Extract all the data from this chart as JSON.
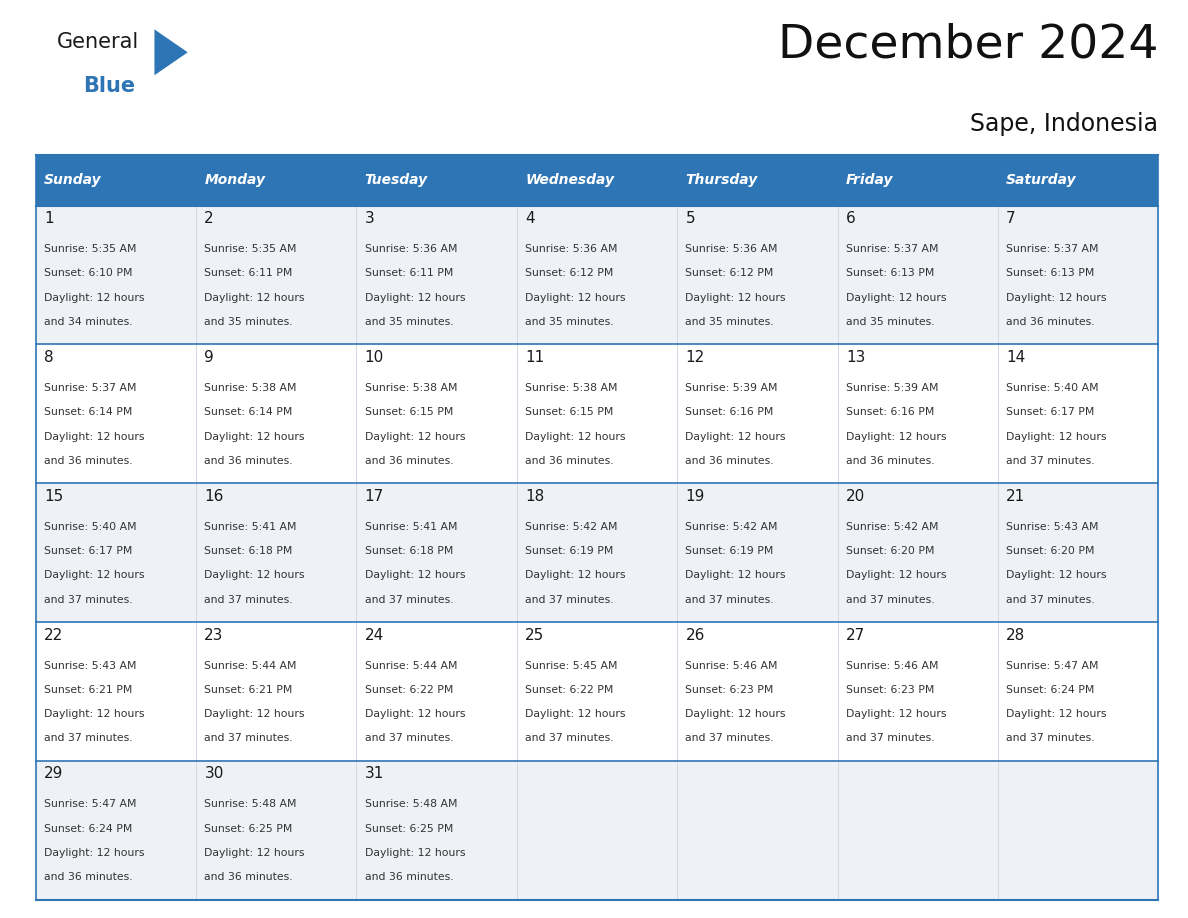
{
  "title": "December 2024",
  "subtitle": "Sape, Indonesia",
  "header_color": "#2e75b6",
  "header_text_color": "#ffffff",
  "day_names": [
    "Sunday",
    "Monday",
    "Tuesday",
    "Wednesday",
    "Thursday",
    "Friday",
    "Saturday"
  ],
  "background_color": "#ffffff",
  "row_bg_colors": [
    "#eef2f7",
    "#ffffff",
    "#eef2f7",
    "#ffffff",
    "#eef2f7"
  ],
  "grid_color": "#2e75b6",
  "text_color": "#333333",
  "logo_general_color": "#1a1a1a",
  "logo_blue_color": "#2e75b6",
  "logo_triangle_color": "#2e75b6",
  "days": [
    {
      "day": 1,
      "col": 0,
      "row": 0,
      "sunrise": "5:35 AM",
      "sunset": "6:10 PM",
      "daylight_hours": 12,
      "daylight_minutes": 34
    },
    {
      "day": 2,
      "col": 1,
      "row": 0,
      "sunrise": "5:35 AM",
      "sunset": "6:11 PM",
      "daylight_hours": 12,
      "daylight_minutes": 35
    },
    {
      "day": 3,
      "col": 2,
      "row": 0,
      "sunrise": "5:36 AM",
      "sunset": "6:11 PM",
      "daylight_hours": 12,
      "daylight_minutes": 35
    },
    {
      "day": 4,
      "col": 3,
      "row": 0,
      "sunrise": "5:36 AM",
      "sunset": "6:12 PM",
      "daylight_hours": 12,
      "daylight_minutes": 35
    },
    {
      "day": 5,
      "col": 4,
      "row": 0,
      "sunrise": "5:36 AM",
      "sunset": "6:12 PM",
      "daylight_hours": 12,
      "daylight_minutes": 35
    },
    {
      "day": 6,
      "col": 5,
      "row": 0,
      "sunrise": "5:37 AM",
      "sunset": "6:13 PM",
      "daylight_hours": 12,
      "daylight_minutes": 35
    },
    {
      "day": 7,
      "col": 6,
      "row": 0,
      "sunrise": "5:37 AM",
      "sunset": "6:13 PM",
      "daylight_hours": 12,
      "daylight_minutes": 36
    },
    {
      "day": 8,
      "col": 0,
      "row": 1,
      "sunrise": "5:37 AM",
      "sunset": "6:14 PM",
      "daylight_hours": 12,
      "daylight_minutes": 36
    },
    {
      "day": 9,
      "col": 1,
      "row": 1,
      "sunrise": "5:38 AM",
      "sunset": "6:14 PM",
      "daylight_hours": 12,
      "daylight_minutes": 36
    },
    {
      "day": 10,
      "col": 2,
      "row": 1,
      "sunrise": "5:38 AM",
      "sunset": "6:15 PM",
      "daylight_hours": 12,
      "daylight_minutes": 36
    },
    {
      "day": 11,
      "col": 3,
      "row": 1,
      "sunrise": "5:38 AM",
      "sunset": "6:15 PM",
      "daylight_hours": 12,
      "daylight_minutes": 36
    },
    {
      "day": 12,
      "col": 4,
      "row": 1,
      "sunrise": "5:39 AM",
      "sunset": "6:16 PM",
      "daylight_hours": 12,
      "daylight_minutes": 36
    },
    {
      "day": 13,
      "col": 5,
      "row": 1,
      "sunrise": "5:39 AM",
      "sunset": "6:16 PM",
      "daylight_hours": 12,
      "daylight_minutes": 36
    },
    {
      "day": 14,
      "col": 6,
      "row": 1,
      "sunrise": "5:40 AM",
      "sunset": "6:17 PM",
      "daylight_hours": 12,
      "daylight_minutes": 37
    },
    {
      "day": 15,
      "col": 0,
      "row": 2,
      "sunrise": "5:40 AM",
      "sunset": "6:17 PM",
      "daylight_hours": 12,
      "daylight_minutes": 37
    },
    {
      "day": 16,
      "col": 1,
      "row": 2,
      "sunrise": "5:41 AM",
      "sunset": "6:18 PM",
      "daylight_hours": 12,
      "daylight_minutes": 37
    },
    {
      "day": 17,
      "col": 2,
      "row": 2,
      "sunrise": "5:41 AM",
      "sunset": "6:18 PM",
      "daylight_hours": 12,
      "daylight_minutes": 37
    },
    {
      "day": 18,
      "col": 3,
      "row": 2,
      "sunrise": "5:42 AM",
      "sunset": "6:19 PM",
      "daylight_hours": 12,
      "daylight_minutes": 37
    },
    {
      "day": 19,
      "col": 4,
      "row": 2,
      "sunrise": "5:42 AM",
      "sunset": "6:19 PM",
      "daylight_hours": 12,
      "daylight_minutes": 37
    },
    {
      "day": 20,
      "col": 5,
      "row": 2,
      "sunrise": "5:42 AM",
      "sunset": "6:20 PM",
      "daylight_hours": 12,
      "daylight_minutes": 37
    },
    {
      "day": 21,
      "col": 6,
      "row": 2,
      "sunrise": "5:43 AM",
      "sunset": "6:20 PM",
      "daylight_hours": 12,
      "daylight_minutes": 37
    },
    {
      "day": 22,
      "col": 0,
      "row": 3,
      "sunrise": "5:43 AM",
      "sunset": "6:21 PM",
      "daylight_hours": 12,
      "daylight_minutes": 37
    },
    {
      "day": 23,
      "col": 1,
      "row": 3,
      "sunrise": "5:44 AM",
      "sunset": "6:21 PM",
      "daylight_hours": 12,
      "daylight_minutes": 37
    },
    {
      "day": 24,
      "col": 2,
      "row": 3,
      "sunrise": "5:44 AM",
      "sunset": "6:22 PM",
      "daylight_hours": 12,
      "daylight_minutes": 37
    },
    {
      "day": 25,
      "col": 3,
      "row": 3,
      "sunrise": "5:45 AM",
      "sunset": "6:22 PM",
      "daylight_hours": 12,
      "daylight_minutes": 37
    },
    {
      "day": 26,
      "col": 4,
      "row": 3,
      "sunrise": "5:46 AM",
      "sunset": "6:23 PM",
      "daylight_hours": 12,
      "daylight_minutes": 37
    },
    {
      "day": 27,
      "col": 5,
      "row": 3,
      "sunrise": "5:46 AM",
      "sunset": "6:23 PM",
      "daylight_hours": 12,
      "daylight_minutes": 37
    },
    {
      "day": 28,
      "col": 6,
      "row": 3,
      "sunrise": "5:47 AM",
      "sunset": "6:24 PM",
      "daylight_hours": 12,
      "daylight_minutes": 37
    },
    {
      "day": 29,
      "col": 0,
      "row": 4,
      "sunrise": "5:47 AM",
      "sunset": "6:24 PM",
      "daylight_hours": 12,
      "daylight_minutes": 36
    },
    {
      "day": 30,
      "col": 1,
      "row": 4,
      "sunrise": "5:48 AM",
      "sunset": "6:25 PM",
      "daylight_hours": 12,
      "daylight_minutes": 36
    },
    {
      "day": 31,
      "col": 2,
      "row": 4,
      "sunrise": "5:48 AM",
      "sunset": "6:25 PM",
      "daylight_hours": 12,
      "daylight_minutes": 36
    }
  ]
}
